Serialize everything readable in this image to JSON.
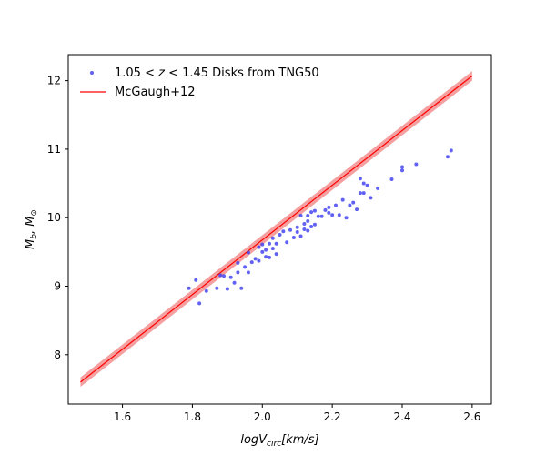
{
  "chart_data": {
    "type": "scatter",
    "title": "",
    "xlabel": "logV_circ[km/s]",
    "ylabel": "M_b, M_⊙",
    "xlim": [
      1.445,
      2.655
    ],
    "ylim": [
      7.28,
      12.38
    ],
    "xticks": [
      1.6,
      1.8,
      2.0,
      2.2,
      2.4,
      2.6
    ],
    "yticks": [
      8,
      9,
      10,
      11,
      12
    ],
    "grid": false,
    "legend_position": "upper-left",
    "series": [
      {
        "name": "1.05 < z < 1.45 Disks from TNG50",
        "kind": "scatter",
        "color": "#3a3af0",
        "points": [
          [
            1.79,
            8.97
          ],
          [
            1.81,
            9.09
          ],
          [
            1.82,
            8.75
          ],
          [
            1.84,
            8.93
          ],
          [
            1.87,
            8.97
          ],
          [
            1.88,
            9.16
          ],
          [
            1.89,
            9.15
          ],
          [
            1.9,
            8.96
          ],
          [
            1.91,
            9.13
          ],
          [
            1.92,
            9.05
          ],
          [
            1.93,
            9.2
          ],
          [
            1.93,
            9.34
          ],
          [
            1.94,
            8.97
          ],
          [
            1.95,
            9.28
          ],
          [
            1.96,
            9.2
          ],
          [
            1.96,
            9.49
          ],
          [
            1.97,
            9.35
          ],
          [
            1.98,
            9.4
          ],
          [
            1.99,
            9.37
          ],
          [
            1.99,
            9.57
          ],
          [
            2.0,
            9.5
          ],
          [
            2.0,
            9.61
          ],
          [
            2.01,
            9.53
          ],
          [
            2.01,
            9.43
          ],
          [
            2.02,
            9.62
          ],
          [
            2.02,
            9.42
          ],
          [
            2.03,
            9.7
          ],
          [
            2.03,
            9.55
          ],
          [
            2.04,
            9.47
          ],
          [
            2.04,
            9.62
          ],
          [
            2.05,
            9.75
          ],
          [
            2.06,
            9.8
          ],
          [
            2.07,
            9.64
          ],
          [
            2.08,
            9.82
          ],
          [
            2.09,
            9.71
          ],
          [
            2.1,
            9.79
          ],
          [
            2.1,
            9.86
          ],
          [
            2.11,
            9.73
          ],
          [
            2.11,
            10.03
          ],
          [
            2.12,
            9.91
          ],
          [
            2.12,
            9.83
          ],
          [
            2.13,
            9.95
          ],
          [
            2.13,
            9.81
          ],
          [
            2.13,
            10.03
          ],
          [
            2.14,
            9.87
          ],
          [
            2.14,
            10.08
          ],
          [
            2.15,
            9.9
          ],
          [
            2.15,
            10.1
          ],
          [
            2.16,
            10.02
          ],
          [
            2.17,
            10.02
          ],
          [
            2.18,
            10.11
          ],
          [
            2.19,
            10.15
          ],
          [
            2.19,
            10.07
          ],
          [
            2.2,
            10.04
          ],
          [
            2.21,
            10.18
          ],
          [
            2.22,
            10.04
          ],
          [
            2.23,
            10.26
          ],
          [
            2.24,
            10.0
          ],
          [
            2.25,
            10.18
          ],
          [
            2.26,
            10.22
          ],
          [
            2.27,
            10.12
          ],
          [
            2.28,
            10.36
          ],
          [
            2.28,
            10.57
          ],
          [
            2.29,
            10.5
          ],
          [
            2.29,
            10.36
          ],
          [
            2.3,
            10.47
          ],
          [
            2.31,
            10.29
          ],
          [
            2.33,
            10.43
          ],
          [
            2.37,
            10.56
          ],
          [
            2.4,
            10.69
          ],
          [
            2.4,
            10.74
          ],
          [
            2.44,
            10.78
          ],
          [
            2.53,
            10.89
          ],
          [
            2.54,
            10.98
          ]
        ]
      },
      {
        "name": "McGaugh+12",
        "kind": "line",
        "color": "#ff0000",
        "band_color": "#f08080",
        "x": [
          1.48,
          2.6
        ],
        "y": [
          7.6,
          12.07
        ],
        "band_y_lower": [
          7.53,
          12.0
        ],
        "band_y_upper": [
          7.67,
          12.14
        ]
      }
    ]
  }
}
